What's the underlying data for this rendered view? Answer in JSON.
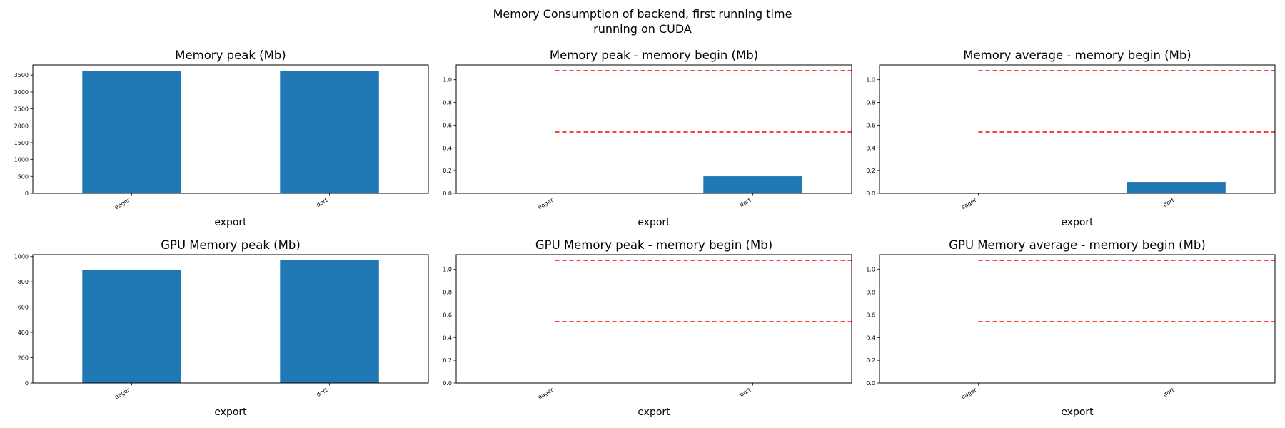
{
  "figure": {
    "title_line1": "Memory Consumption of backend, first running time",
    "title_line2": "running on CUDA"
  },
  "colors": {
    "bar": "#1f77b4",
    "reference_line": "#ff0000"
  },
  "chart_data": [
    {
      "type": "bar",
      "title": "Memory peak (Mb)",
      "xlabel": "export",
      "categories": [
        "eager",
        "dort"
      ],
      "values": [
        3620,
        3620
      ],
      "ylim": [
        0,
        3800
      ],
      "yticks": [
        "0",
        "500",
        "1000",
        "1500",
        "2000",
        "2500",
        "3000",
        "3500"
      ],
      "reference_lines": []
    },
    {
      "type": "bar",
      "title": "Memory peak - memory begin (Mb)",
      "xlabel": "export",
      "categories": [
        "eager",
        "dort"
      ],
      "values": [
        0,
        0.15
      ],
      "ylim": [
        0,
        1.13
      ],
      "yticks": [
        "0.0",
        "0.2",
        "0.4",
        "0.6",
        "0.8",
        "1.0"
      ],
      "reference_lines": [
        0.54,
        1.08
      ]
    },
    {
      "type": "bar",
      "title": "Memory average - memory begin (Mb)",
      "xlabel": "export",
      "categories": [
        "eager",
        "dort"
      ],
      "values": [
        0,
        0.1
      ],
      "ylim": [
        0,
        1.13
      ],
      "yticks": [
        "0.0",
        "0.2",
        "0.4",
        "0.6",
        "0.8",
        "1.0"
      ],
      "reference_lines": [
        0.54,
        1.08
      ]
    },
    {
      "type": "bar",
      "title": "GPU Memory peak (Mb)",
      "xlabel": "export",
      "categories": [
        "eager",
        "dort"
      ],
      "values": [
        895,
        975
      ],
      "ylim": [
        0,
        1015
      ],
      "yticks": [
        "0",
        "200",
        "400",
        "600",
        "800",
        "1000"
      ],
      "reference_lines": []
    },
    {
      "type": "bar",
      "title": "GPU Memory peak - memory begin (Mb)",
      "xlabel": "export",
      "categories": [
        "eager",
        "dort"
      ],
      "values": [
        0,
        0
      ],
      "ylim": [
        0,
        1.13
      ],
      "yticks": [
        "0.0",
        "0.2",
        "0.4",
        "0.6",
        "0.8",
        "1.0"
      ],
      "reference_lines": [
        0.54,
        1.08
      ]
    },
    {
      "type": "bar",
      "title": "GPU Memory average - memory begin (Mb)",
      "xlabel": "export",
      "categories": [
        "eager",
        "dort"
      ],
      "values": [
        0,
        0
      ],
      "ylim": [
        0,
        1.13
      ],
      "yticks": [
        "0.0",
        "0.2",
        "0.4",
        "0.6",
        "0.8",
        "1.0"
      ],
      "reference_lines": [
        0.54,
        1.08
      ]
    }
  ]
}
